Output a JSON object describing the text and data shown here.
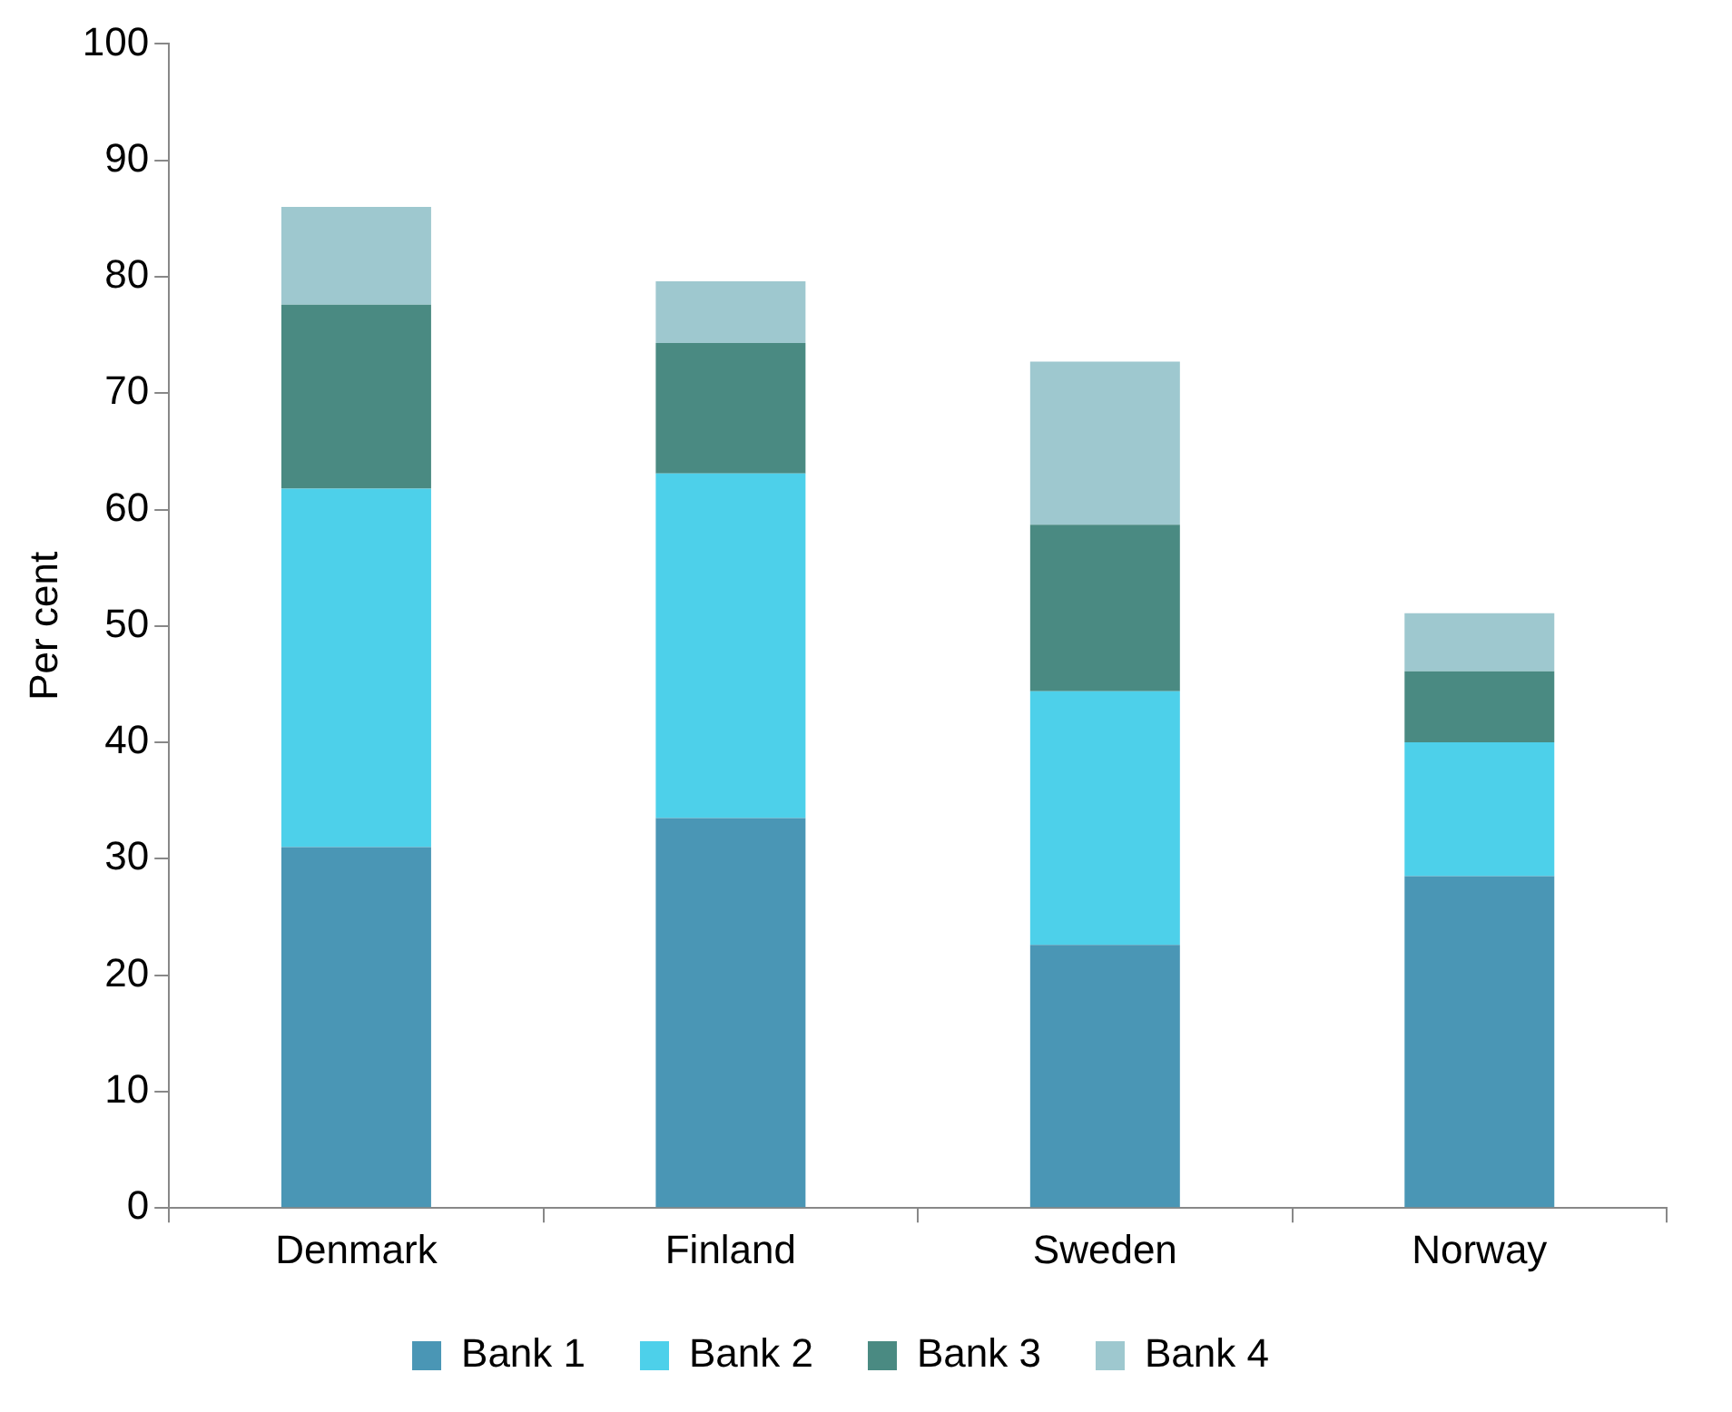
{
  "chart_data": {
    "type": "bar",
    "stacked": true,
    "ylabel": "Per cent",
    "categories": [
      "Denmark",
      "Finland",
      "Sweden",
      "Norway"
    ],
    "series": [
      {
        "name": "Bank 1",
        "color": "#4a96b5",
        "values": [
          31,
          33.5,
          22.6,
          28.5
        ]
      },
      {
        "name": "Bank 2",
        "color": "#4dd0ea",
        "values": [
          30.8,
          29.6,
          21.8,
          11.5
        ]
      },
      {
        "name": "Bank 3",
        "color": "#4a8a82",
        "values": [
          15.8,
          11.2,
          14.3,
          6.1
        ]
      },
      {
        "name": "Bank 4",
        "color": "#9ec8cf",
        "values": [
          8.4,
          5.3,
          14,
          5
        ]
      }
    ],
    "ylim": [
      0,
      100
    ],
    "yticks": [
      0,
      10,
      20,
      30,
      40,
      50,
      60,
      70,
      80,
      90,
      100
    ],
    "grid": false,
    "legend": "bottom"
  }
}
